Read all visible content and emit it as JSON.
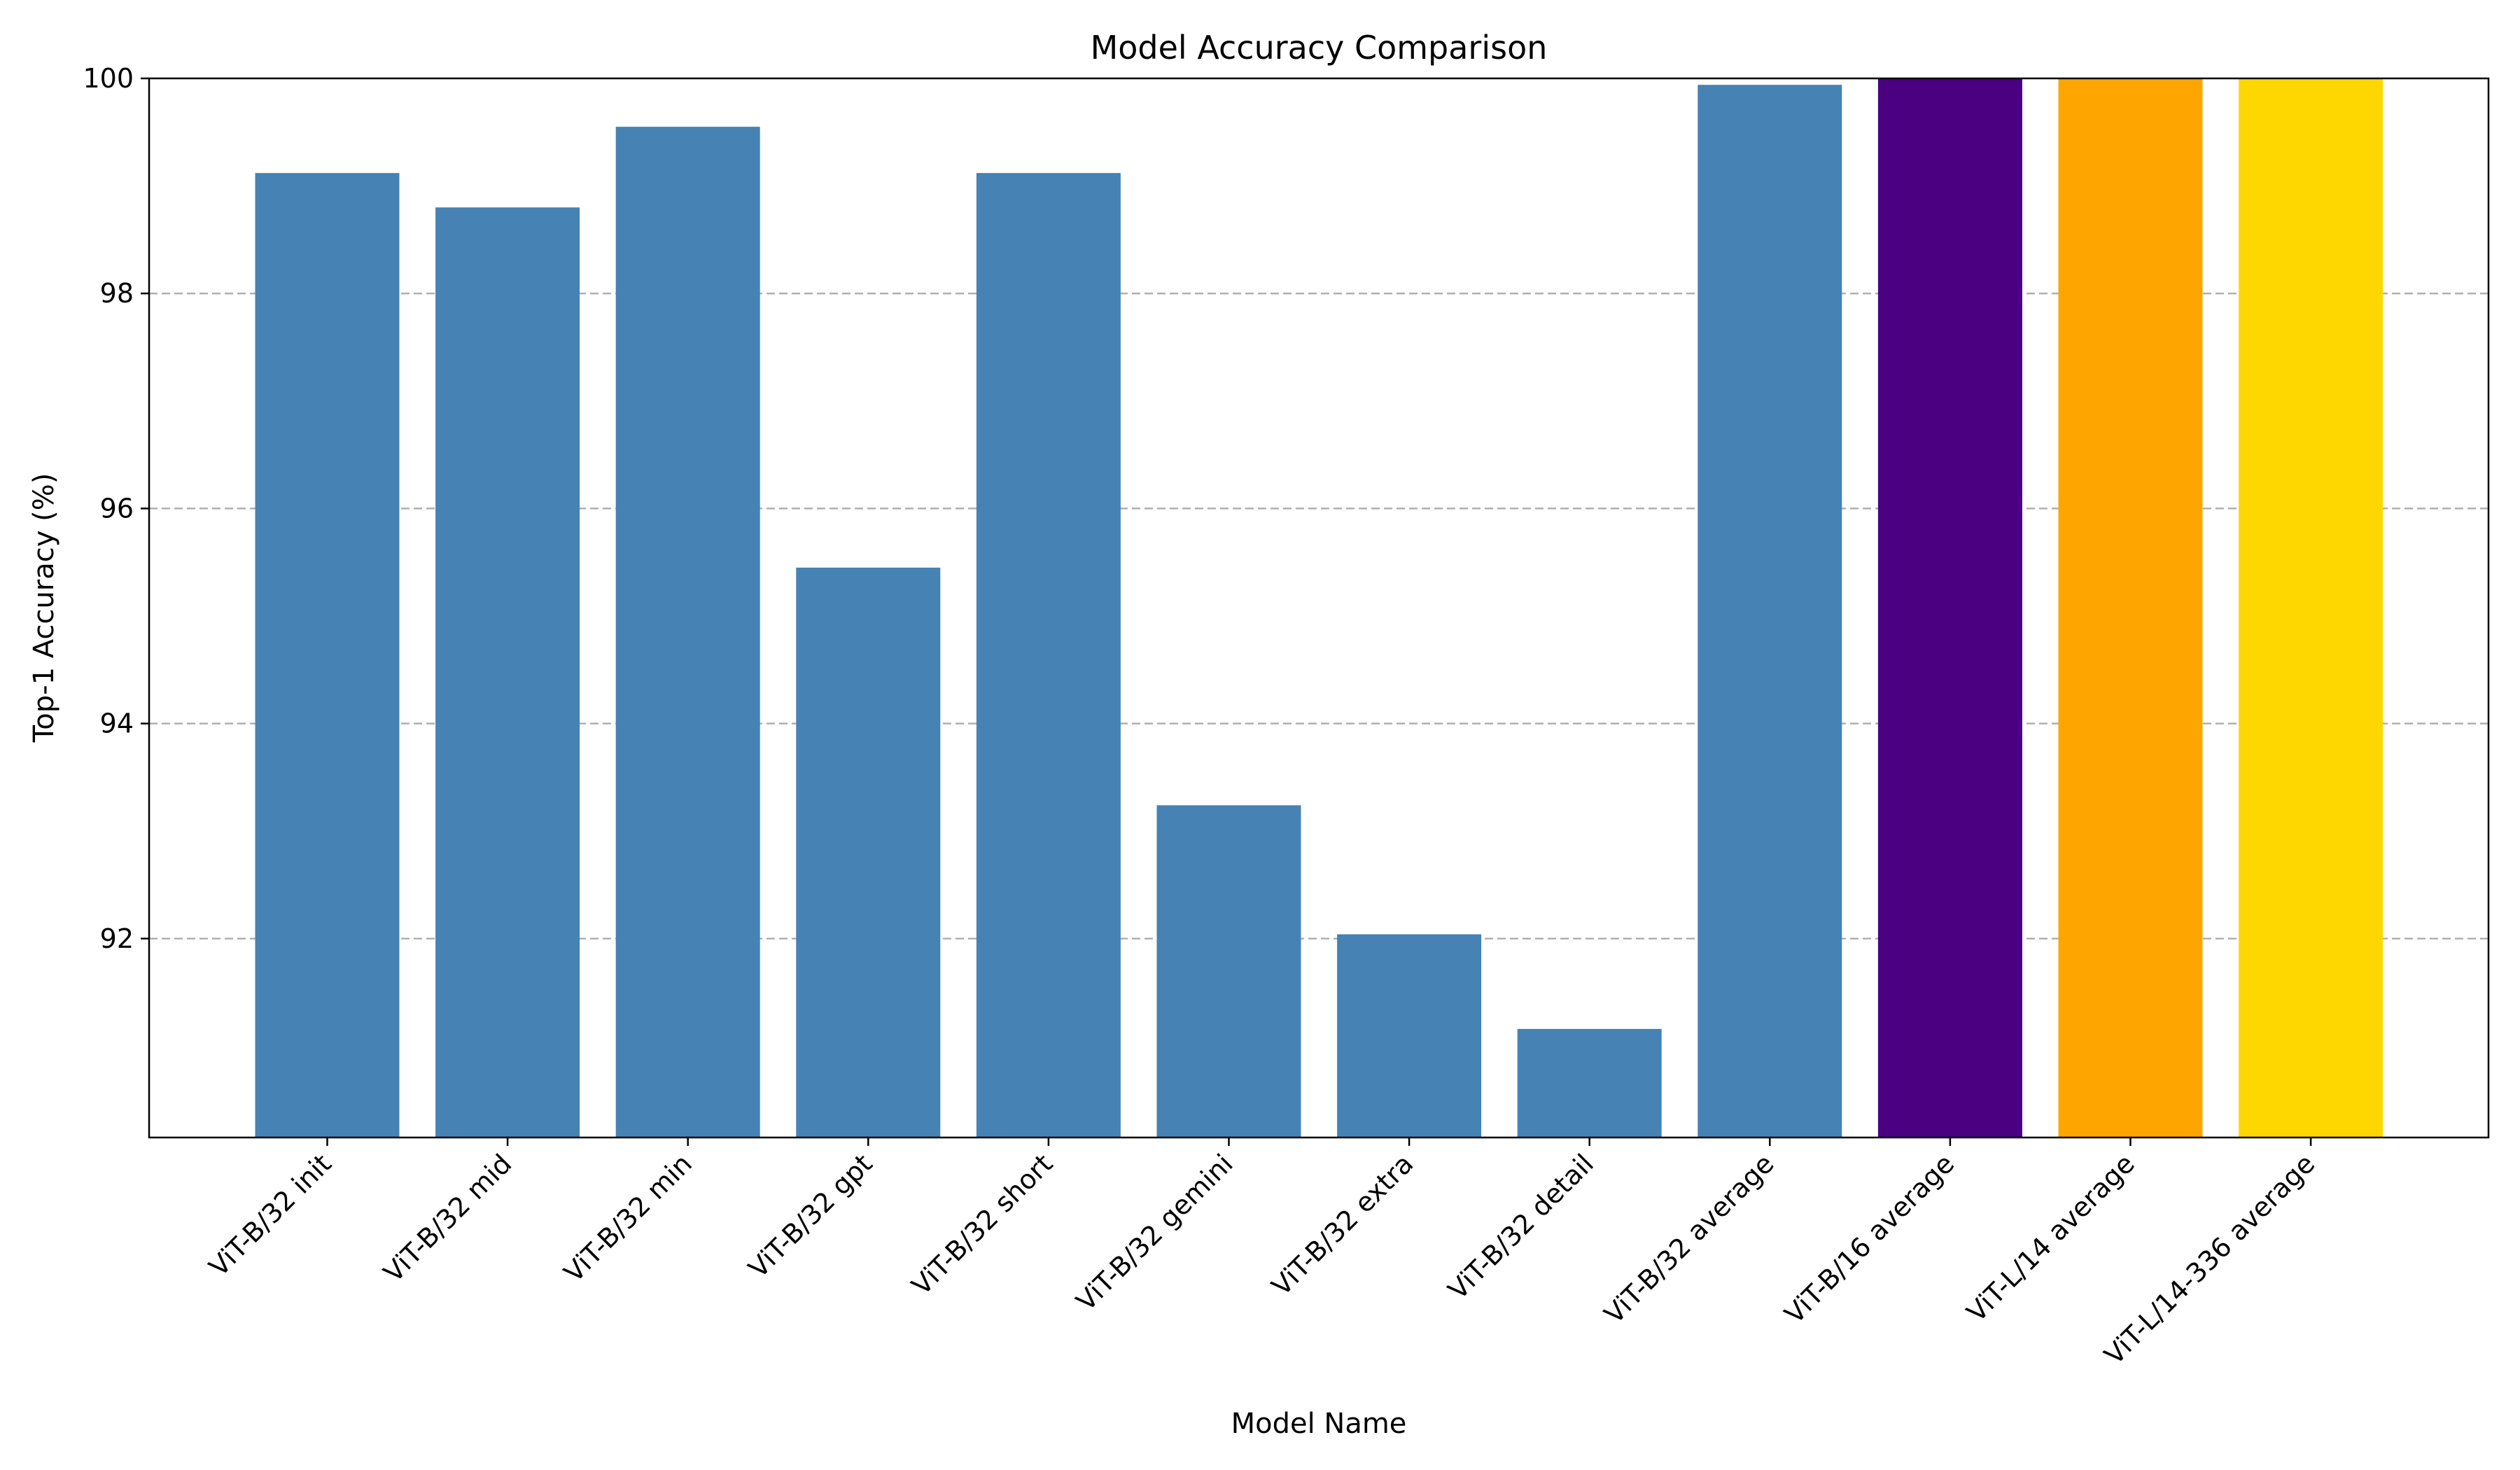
{
  "chart_data": {
    "type": "bar",
    "title": "Model Accuracy Comparison",
    "xlabel": "Model Name",
    "ylabel": "Top-1 Accuracy (%)",
    "ylim": [
      90.15,
      100
    ],
    "yticks": [
      92,
      94,
      96,
      98,
      100
    ],
    "grid": "horizontal dashed",
    "legend": "none",
    "categories": [
      "ViT-B/32 init",
      "ViT-B/32 mid",
      "ViT-B/32 min",
      "ViT-B/32 gpt",
      "ViT-B/32 short",
      "ViT-B/32 gemini",
      "ViT-B/32 extra",
      "ViT-B/32 detail",
      "ViT-B/32 average",
      "ViT-B/16 average",
      "ViT-L/14 average",
      "ViT-L/14-336 average"
    ],
    "values": [
      99.12,
      98.8,
      99.55,
      95.45,
      99.12,
      93.24,
      92.04,
      91.16,
      99.94,
      100.0,
      100.0,
      100.0
    ],
    "colors": [
      "#4682b4",
      "#4682b4",
      "#4682b4",
      "#4682b4",
      "#4682b4",
      "#4682b4",
      "#4682b4",
      "#4682b4",
      "#4682b4",
      "#4b0082",
      "#ffa500",
      "#ffd700"
    ]
  }
}
